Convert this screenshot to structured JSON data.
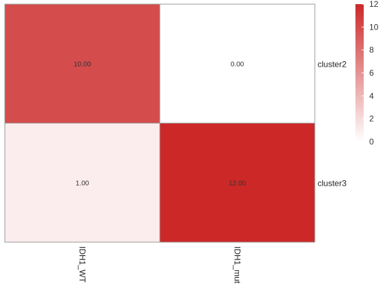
{
  "chart_data": {
    "type": "heatmap",
    "columns": [
      "IDH1_WT",
      "IDH1_mut"
    ],
    "rows": [
      "cluster2",
      "cluster3"
    ],
    "values": [
      [
        10,
        0
      ],
      [
        1,
        12
      ]
    ],
    "cell_labels": [
      [
        "10.00",
        "0.00"
      ],
      [
        "1.00",
        "12.00"
      ]
    ],
    "color_scale": {
      "min": 0,
      "max": 12,
      "low_color": "#ffffff",
      "high_color": "#cc2828"
    },
    "legend_ticks": [
      "12",
      "10",
      "8",
      "6",
      "4",
      "2",
      "0"
    ],
    "legend_position": "top-right"
  }
}
